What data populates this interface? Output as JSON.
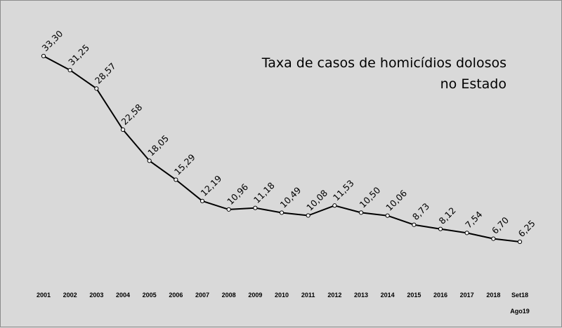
{
  "chart_data": {
    "type": "line",
    "title_lines": [
      "Taxa de casos de homicídios dolosos",
      "no Estado"
    ],
    "xlabel": "",
    "ylabel": "",
    "categories": [
      "2001",
      "2002",
      "2003",
      "2004",
      "2005",
      "2006",
      "2007",
      "2008",
      "2009",
      "2010",
      "2011",
      "2012",
      "2013",
      "2014",
      "2015",
      "2016",
      "2017",
      "2018",
      "Set18"
    ],
    "category_sublabel": {
      "index": 18,
      "text": "Ago19"
    },
    "values": [
      33.3,
      31.25,
      28.57,
      22.58,
      18.05,
      15.29,
      12.19,
      10.96,
      11.18,
      10.49,
      10.08,
      11.53,
      10.5,
      10.06,
      8.73,
      8.12,
      7.54,
      6.7,
      6.25
    ],
    "data_labels": [
      "33,30",
      "31,25",
      "28,57",
      "22,58",
      "18,05",
      "15,29",
      "12,19",
      "10,96",
      "11,18",
      "10,49",
      "10,08",
      "11,53",
      "10,50",
      "10,06",
      "8,73",
      "8,12",
      "7,54",
      "6,70",
      "6,25"
    ],
    "grid": false,
    "legend": "none",
    "line_color": "#000000",
    "marker_fill": "#ffffff",
    "background_color": "#d9d9d9"
  }
}
